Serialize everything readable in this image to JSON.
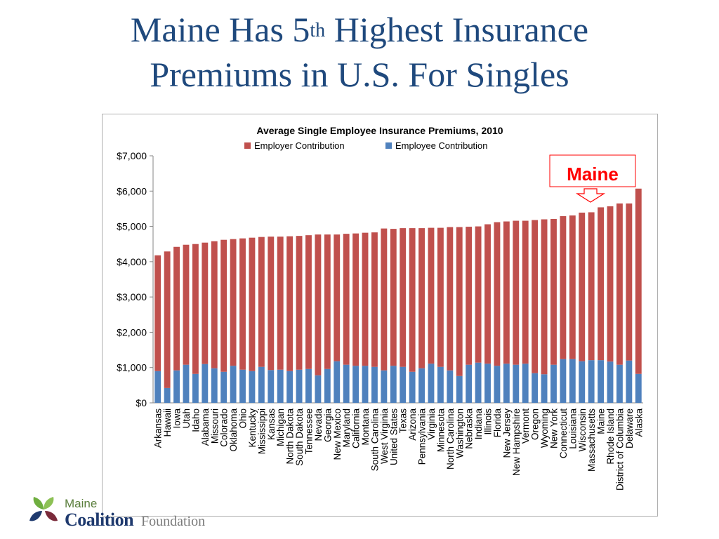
{
  "slide": {
    "title_part1": "Maine Has 5",
    "title_sup": "th",
    "title_part2": " Highest Insurance",
    "title_line2": "Premiums in U.S. For Singles"
  },
  "callout": {
    "label": "Maine",
    "color": "#ff0000"
  },
  "logo": {
    "word1": "Maine",
    "word2": "Coalition",
    "word3": "Foundation"
  },
  "colors": {
    "employer": "#c0504d",
    "employee": "#4f81bd",
    "title": "#1f497d"
  },
  "chart_data": {
    "type": "bar",
    "stacked": true,
    "title": "Average Single Employee Insurance Premiums, 2010",
    "legend": {
      "placement": "top",
      "entries": [
        "Employer Contribution",
        "Employee Contribution"
      ]
    },
    "ylim": [
      0,
      7000
    ],
    "yticks": [
      "$0",
      "$1,000",
      "$2,000",
      "$3,000",
      "$4,000",
      "$5,000",
      "$6,000",
      "$7,000"
    ],
    "grid": false,
    "categories": [
      "Arkansas",
      "Hawaii",
      "Iowa",
      "Utah",
      "Idaho",
      "Alabama",
      "Missouri",
      "Colorado",
      "Oklahoma",
      "Ohio",
      "Kentucky",
      "Mississippi",
      "Kansas",
      "Michigan",
      "North Dakota",
      "South Dakota",
      "Tennessee",
      "Nevada",
      "Georgia",
      "New Mexico",
      "Maryland",
      "California",
      "Montana",
      "South Carolina",
      "West Virginia",
      "United States",
      "Texas",
      "Arizona",
      "Pennsylvania",
      "Virginia",
      "Minnesota",
      "North Carolina",
      "Washington",
      "Nebraska",
      "Indiana",
      "Illinois",
      "Florida",
      "New Jersey",
      "New Hampshire",
      "Vermont",
      "Oregon",
      "Wyoming",
      "New York",
      "Connecticut",
      "Louisiana",
      "Wisconsin",
      "Massachusetts",
      "Maine",
      "Rhode Island",
      "District of Columbia",
      "Delaware",
      "Alaska"
    ],
    "series": [
      {
        "name": "Employee Contribution",
        "values": [
          900,
          420,
          920,
          1080,
          820,
          1100,
          980,
          880,
          1050,
          940,
          900,
          1020,
          930,
          940,
          900,
          940,
          960,
          780,
          960,
          1180,
          1080,
          1050,
          1050,
          1020,
          920,
          1050,
          1020,
          880,
          980,
          1110,
          1020,
          920,
          760,
          1080,
          1140,
          1110,
          1050,
          1110,
          1080,
          1110,
          840,
          810,
          1080,
          1240,
          1240,
          1180,
          1210,
          1210,
          1170,
          1080,
          1200,
          820
        ]
      },
      {
        "name": "Employer Contribution",
        "values": [
          3280,
          3870,
          3500,
          3400,
          3680,
          3440,
          3600,
          3740,
          3590,
          3720,
          3780,
          3680,
          3780,
          3770,
          3820,
          3790,
          3790,
          3990,
          3810,
          3590,
          3710,
          3750,
          3770,
          3810,
          4020,
          3880,
          3930,
          4070,
          3970,
          3850,
          3940,
          4060,
          4220,
          3910,
          3860,
          3950,
          4070,
          4030,
          4080,
          4050,
          4340,
          4390,
          4130,
          4050,
          4070,
          4210,
          4190,
          4330,
          4400,
          4570,
          4450,
          5250
        ]
      }
    ]
  }
}
